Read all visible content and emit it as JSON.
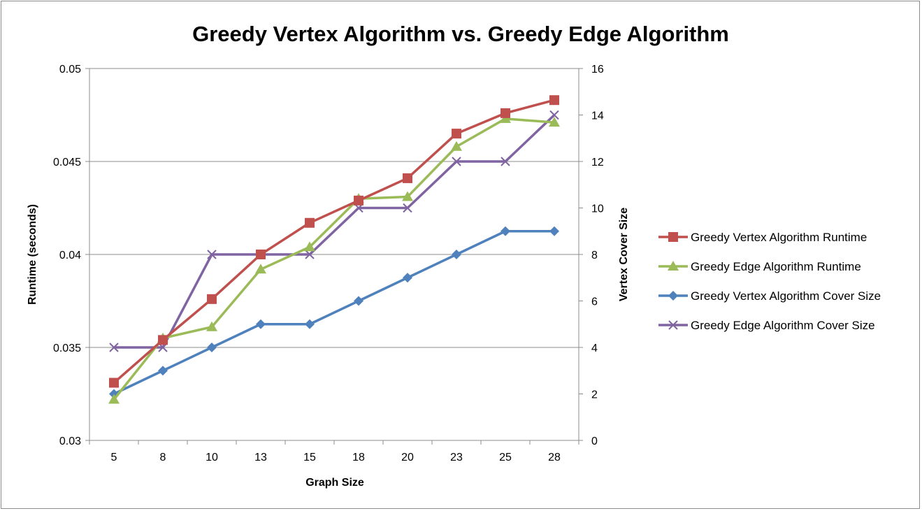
{
  "chart_data": {
    "type": "line",
    "title": "Greedy Vertex Algorithm vs. Greedy Edge Algorithm",
    "xlabel": "Graph Size",
    "ylabel": "Runtime (seconds)",
    "y2label": "Vertex Cover Size",
    "categories": [
      "5",
      "8",
      "10",
      "13",
      "15",
      "18",
      "20",
      "23",
      "25",
      "28"
    ],
    "ylim": [
      0.03,
      0.05
    ],
    "yticks": [
      "0.03",
      "0.035",
      "0.04",
      "0.045",
      "0.05"
    ],
    "y2lim": [
      0,
      16
    ],
    "y2ticks": [
      "0",
      "2",
      "4",
      "6",
      "8",
      "10",
      "12",
      "14",
      "16"
    ],
    "grid": true,
    "legend_position": "right",
    "series": [
      {
        "name": "Greedy Vertex Algorithm Runtime",
        "axis": "left",
        "marker": "square",
        "color": "#c0504d",
        "values": [
          0.0331,
          0.0354,
          0.0376,
          0.04,
          0.0417,
          0.0429,
          0.0441,
          0.0465,
          0.0476,
          0.0483
        ]
      },
      {
        "name": "Greedy Edge Algorithm Runtime",
        "axis": "left",
        "marker": "triangle",
        "color": "#9bbb59",
        "values": [
          0.0322,
          0.0355,
          0.0361,
          0.0392,
          0.0404,
          0.043,
          0.0431,
          0.0458,
          0.0473,
          0.0471
        ]
      },
      {
        "name": "Greedy Vertex Algorithm Cover Size",
        "axis": "right",
        "marker": "diamond",
        "color": "#4f81bd",
        "values": [
          2,
          3,
          4,
          5,
          5,
          6,
          7,
          8,
          9,
          9
        ]
      },
      {
        "name": "Greedy Edge Algorithm Cover Size",
        "axis": "right",
        "marker": "x",
        "color": "#8064a2",
        "values": [
          4,
          4,
          8,
          8,
          8,
          10,
          10,
          12,
          12,
          14
        ]
      }
    ]
  }
}
